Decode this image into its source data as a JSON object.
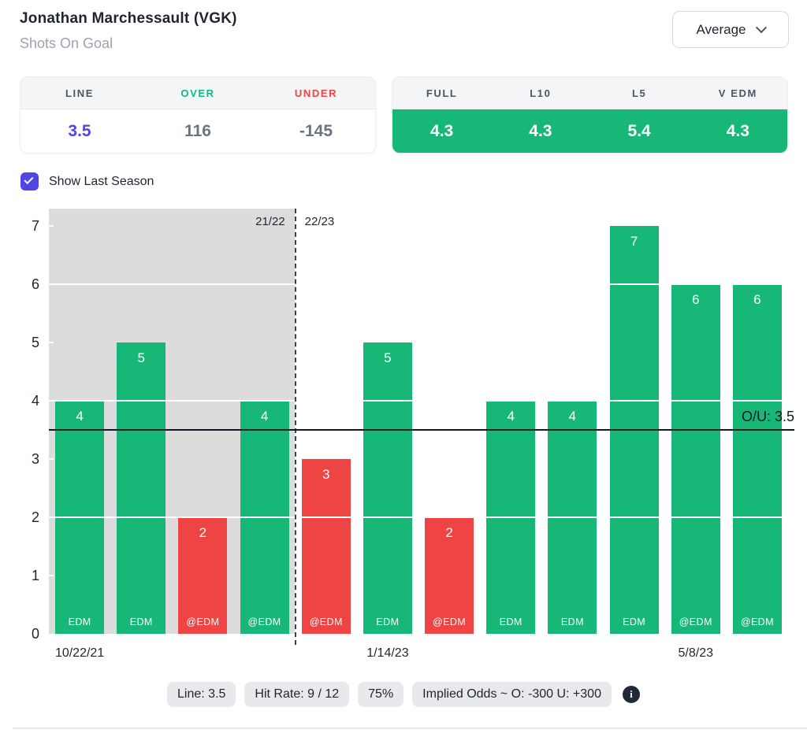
{
  "header": {
    "title": "Jonathan Marchessault (VGK)",
    "subtitle": "Shots On Goal",
    "dropdown_value": "Average"
  },
  "odds_card": {
    "columns": [
      {
        "label": "LINE",
        "value": "3.5",
        "label_color": "#4b5563",
        "value_color": "#5046e5"
      },
      {
        "label": "OVER",
        "value": "116",
        "label_color": "#10b981",
        "value_color": "#6b7280"
      },
      {
        "label": "UNDER",
        "value": "-145",
        "label_color": "#ef4444",
        "value_color": "#6b7280"
      }
    ]
  },
  "averages_card": {
    "columns": [
      {
        "label": "FULL",
        "value": "4.3"
      },
      {
        "label": "L10",
        "value": "4.3"
      },
      {
        "label": "L5",
        "value": "5.4"
      },
      {
        "label": "V EDM",
        "value": "4.3"
      }
    ]
  },
  "toggle": {
    "label": "Show Last Season",
    "checked": true
  },
  "chart_data": {
    "type": "bar",
    "title": "",
    "xlabel": "",
    "ylabel": "",
    "ylim": [
      0,
      7.3
    ],
    "y_ticks": [
      0,
      1,
      2,
      3,
      4,
      5,
      6,
      7
    ],
    "gridline_values": [
      2,
      4,
      6
    ],
    "minor_tick_values": [
      1,
      3,
      5,
      7
    ],
    "bars": [
      {
        "value": 4,
        "opponent": "EDM",
        "result": "over",
        "season": "21/22"
      },
      {
        "value": 5,
        "opponent": "EDM",
        "result": "over",
        "season": "21/22"
      },
      {
        "value": 2,
        "opponent": "@EDM",
        "result": "under",
        "season": "21/22"
      },
      {
        "value": 4,
        "opponent": "@EDM",
        "result": "over",
        "season": "21/22"
      },
      {
        "value": 3,
        "opponent": "@EDM",
        "result": "under",
        "season": "22/23"
      },
      {
        "value": 5,
        "opponent": "EDM",
        "result": "over",
        "season": "22/23"
      },
      {
        "value": 2,
        "opponent": "@EDM",
        "result": "under",
        "season": "22/23"
      },
      {
        "value": 4,
        "opponent": "EDM",
        "result": "over",
        "season": "22/23"
      },
      {
        "value": 4,
        "opponent": "EDM",
        "result": "over",
        "season": "22/23"
      },
      {
        "value": 7,
        "opponent": "EDM",
        "result": "over",
        "season": "22/23"
      },
      {
        "value": 6,
        "opponent": "@EDM",
        "result": "over",
        "season": "22/23"
      },
      {
        "value": 6,
        "opponent": "@EDM",
        "result": "over",
        "season": "22/23"
      }
    ],
    "x_date_labels": [
      {
        "text": "10/22/21",
        "bar_index": 0
      },
      {
        "text": "1/14/23",
        "bar_index": 5
      },
      {
        "text": "5/8/23",
        "bar_index": 10
      }
    ],
    "season_divider": {
      "after_bar_index": 3,
      "left_label": "21/22",
      "right_label": "22/23"
    },
    "ou_line": {
      "value": 3.5,
      "label": "O/U: 3.5"
    },
    "legend": null,
    "grid": "horizontal-white",
    "colors": {
      "over": "#17b877",
      "under": "#ef4444",
      "last_season_bg": "#dcdcdc",
      "accent": "#5046e5",
      "green_panel": "#17b877"
    }
  },
  "footer": {
    "badges": [
      "Line: 3.5",
      "Hit Rate: 9 / 12",
      "75%",
      "Implied Odds ~ O: -300 U: +300"
    ],
    "info_icon": "i"
  }
}
